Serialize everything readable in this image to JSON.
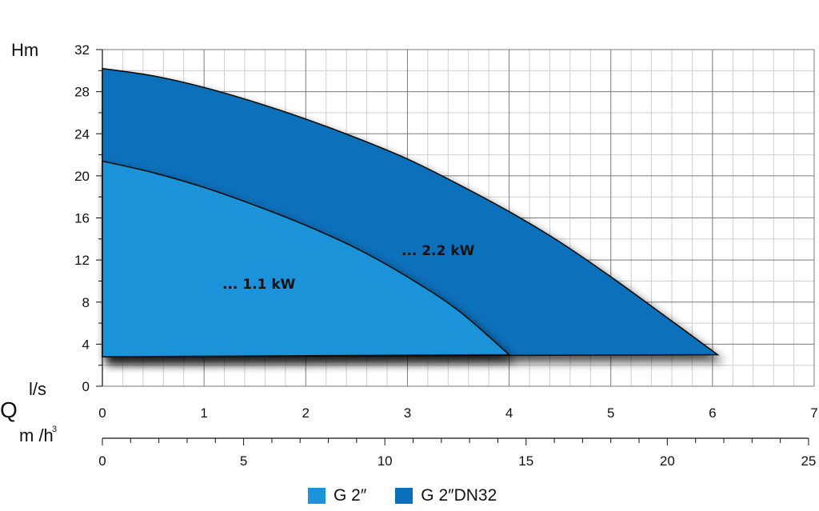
{
  "chart_data": {
    "type": "area",
    "ylabel": "Hm",
    "xlabel_q": "Q",
    "xlabel_top_unit": "l/s",
    "xlabel_bottom_unit": "m /h",
    "y_ticks": [
      0,
      4,
      8,
      12,
      16,
      20,
      24,
      28,
      32
    ],
    "x_ticks_ls": [
      0,
      1,
      2,
      3,
      4,
      5,
      6,
      7
    ],
    "x_ticks_m3h": [
      0,
      5,
      10,
      15,
      20,
      25
    ],
    "ylim": [
      0,
      32
    ],
    "xlim_ls": [
      0,
      7
    ],
    "xlim_m3h": [
      0,
      25
    ],
    "grid": true,
    "legend_position": "bottom",
    "series": [
      {
        "name": "G 2″",
        "label": "... 1.1 kW",
        "color": "#1a93d8",
        "baseline": 2.8,
        "x": [
          0,
          0.5,
          1,
          1.5,
          2,
          2.5,
          3,
          3.5,
          4
        ],
        "y": [
          21.4,
          20.3,
          18.9,
          17.2,
          15.3,
          13.1,
          10.4,
          7.2,
          3.0
        ]
      },
      {
        "name": "G 2″DN32",
        "label": "... 2.2 kW",
        "color": "#0a70ba",
        "baseline": 2.8,
        "x": [
          0,
          0.5,
          1,
          1.5,
          2,
          2.5,
          3,
          3.5,
          4,
          4.5,
          5,
          5.5,
          6.05
        ],
        "y": [
          30.2,
          29.5,
          28.4,
          27.0,
          25.4,
          23.6,
          21.6,
          19.2,
          16.6,
          13.7,
          10.4,
          6.9,
          3.0
        ]
      }
    ]
  }
}
